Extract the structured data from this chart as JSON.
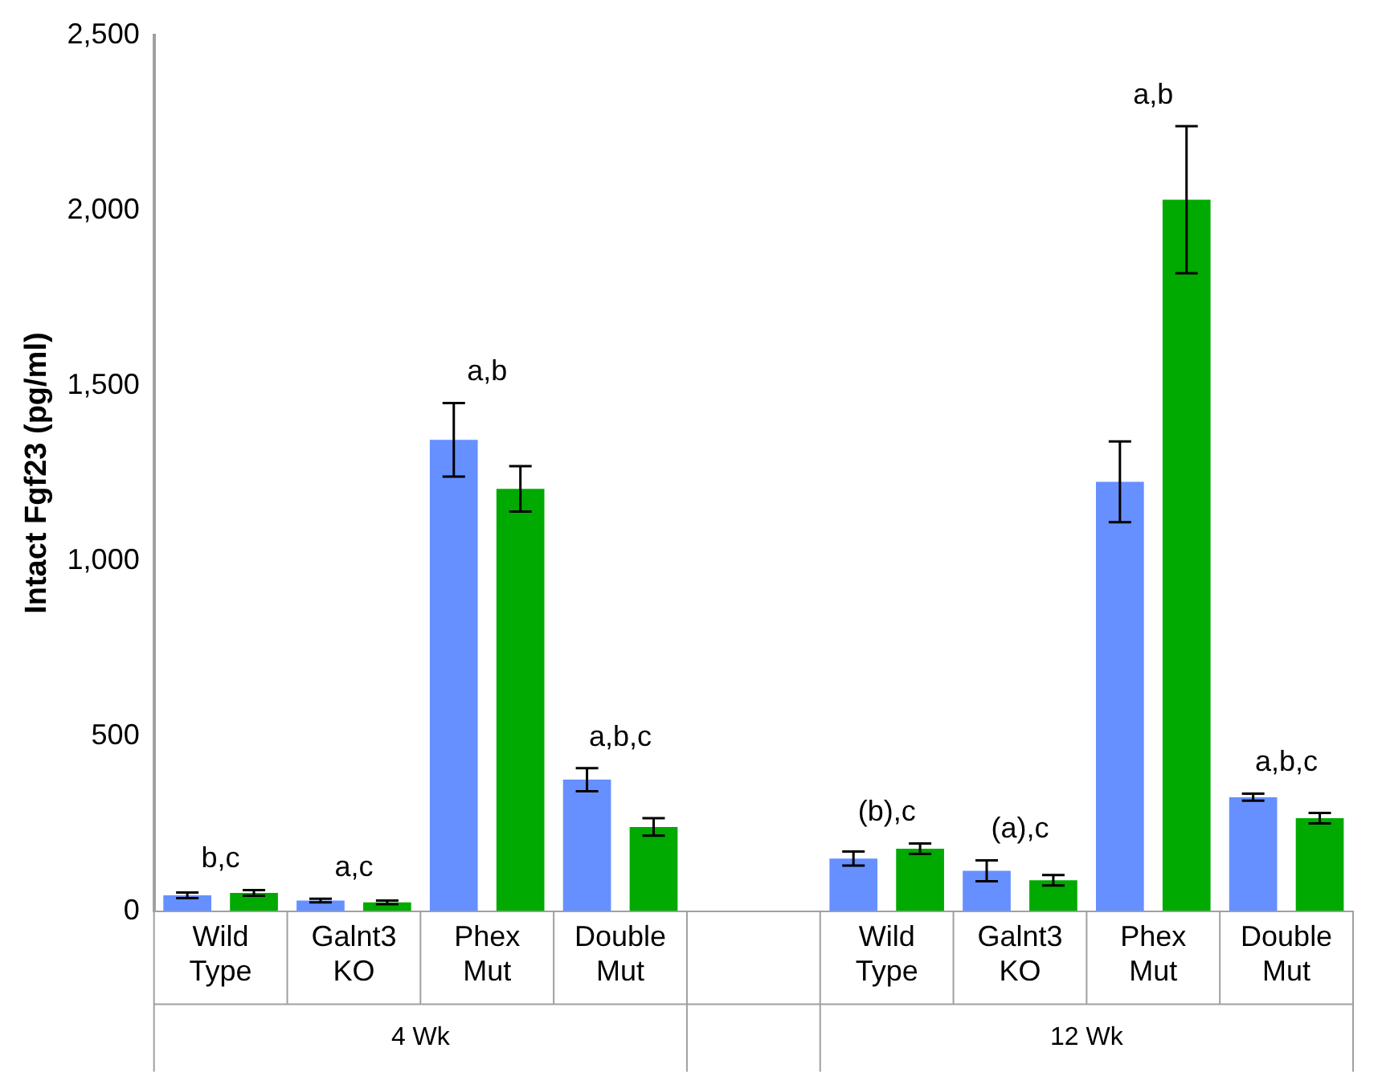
{
  "chart_data": {
    "type": "bar",
    "ylabel": "Intact Fgf23 (pg/ml)",
    "categories": [
      "Wild Type",
      "Galnt3 KO",
      "Phex Mut",
      "Double Mut",
      null,
      "Wild Type",
      "Galnt3 KO",
      "Phex Mut",
      "Double Mut"
    ],
    "series": [
      {
        "color": "#6690ff",
        "values": [
          45,
          30,
          1345,
          375,
          null,
          150,
          115,
          1225,
          325
        ],
        "errors": [
          8,
          5,
          105,
          33,
          null,
          20,
          30,
          115,
          10
        ]
      },
      {
        "color": "#00aa00",
        "values": [
          52,
          25,
          1205,
          240,
          null,
          178,
          88,
          2030,
          265
        ],
        "errors": [
          8,
          5,
          65,
          25,
          null,
          15,
          15,
          210,
          15
        ]
      }
    ],
    "ylim": [
      0,
      2500
    ],
    "yticks": [
      {
        "value": 0,
        "label": "0"
      },
      {
        "value": 500,
        "label": "500"
      },
      {
        "value": 1000,
        "label": "1,000"
      },
      {
        "value": 1500,
        "label": "1,500"
      },
      {
        "value": 2000,
        "label": "2,000"
      },
      {
        "value": 2500,
        "label": "2,500"
      }
    ],
    "grid": false,
    "legend": false,
    "annotations": [
      "4 Wk",
      "12 Wk",
      "b,c",
      "a,c",
      "a,b",
      "a,b,c",
      "(b),c",
      "(a),c",
      "a,b",
      "a,b,c"
    ]
  }
}
